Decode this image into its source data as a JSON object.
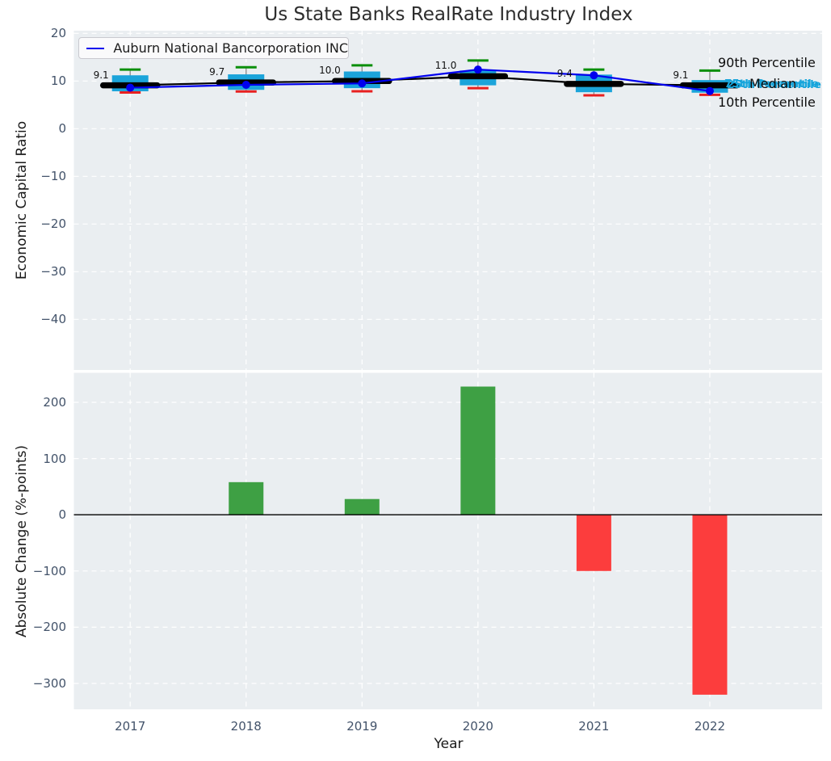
{
  "title": "Us State Banks RealRate Industry Index",
  "legend": {
    "label": "Auburn National Bancorporation INC"
  },
  "right_labels": {
    "p90": "90th Percentile",
    "p75": "75th Percentile",
    "median": "Median",
    "p25": "25th Percentile",
    "p10": "10th Percentile"
  },
  "colors": {
    "axes_bg": "#EAEEF1",
    "grid": "#FFFFFF",
    "box_fill": "#1BA4DA",
    "whisker": "#8A8A8A",
    "cap_high": "#0A8F0A",
    "cap_low": "#E82020",
    "median_line": "#000000",
    "company_line": "#0000EE",
    "bar_positive": "#3EA044",
    "bar_negative": "#FC3D3D",
    "tick_label": "#43536A",
    "percentile_accent": "#17A5DB"
  },
  "chart_data": [
    {
      "type": "boxplot+line",
      "title": "Us State Banks RealRate Industry Index",
      "ylabel": "Economic Capital Ratio",
      "categories": [
        "2017",
        "2018",
        "2019",
        "2020",
        "2021",
        "2022"
      ],
      "yticks": [
        20,
        10,
        0,
        -10,
        -20,
        -30,
        -40
      ],
      "ylim": [
        -50.6,
        20.6
      ],
      "grid": true,
      "legend_position": "upper left",
      "series": [
        {
          "name": "90th Percentile",
          "values": [
            12.4,
            12.9,
            13.3,
            14.3,
            12.4,
            12.2
          ]
        },
        {
          "name": "75th Percentile",
          "values": [
            11.2,
            11.4,
            12.0,
            12.2,
            11.35,
            10.2
          ]
        },
        {
          "name": "Median",
          "values": [
            9.1,
            9.7,
            10.0,
            11.0,
            9.4,
            9.1
          ]
        },
        {
          "name": "25th Percentile",
          "values": [
            7.85,
            8.15,
            8.5,
            9.1,
            7.65,
            7.55
          ]
        },
        {
          "name": "10th Percentile",
          "values": [
            7.6,
            7.8,
            7.85,
            8.5,
            7.0,
            7.1
          ]
        },
        {
          "name": "Auburn National Bancorporation INC",
          "values": [
            8.6,
            9.2,
            9.5,
            12.4,
            11.2,
            7.9
          ]
        }
      ],
      "median_labels": [
        "9.1",
        "9.7",
        "10.0",
        "11.0",
        "9.4",
        "9.1"
      ]
    },
    {
      "type": "bar",
      "xlabel": "Year",
      "ylabel": "Absolute Change (%-points)",
      "categories": [
        "2017",
        "2018",
        "2019",
        "2020",
        "2021",
        "2022"
      ],
      "values": [
        null,
        58,
        28,
        228,
        -100,
        -320
      ],
      "yticks": [
        200,
        100,
        0,
        -100,
        -200,
        -300
      ],
      "ylim": [
        -346,
        252
      ],
      "grid": true,
      "zero_line": 0
    }
  ]
}
